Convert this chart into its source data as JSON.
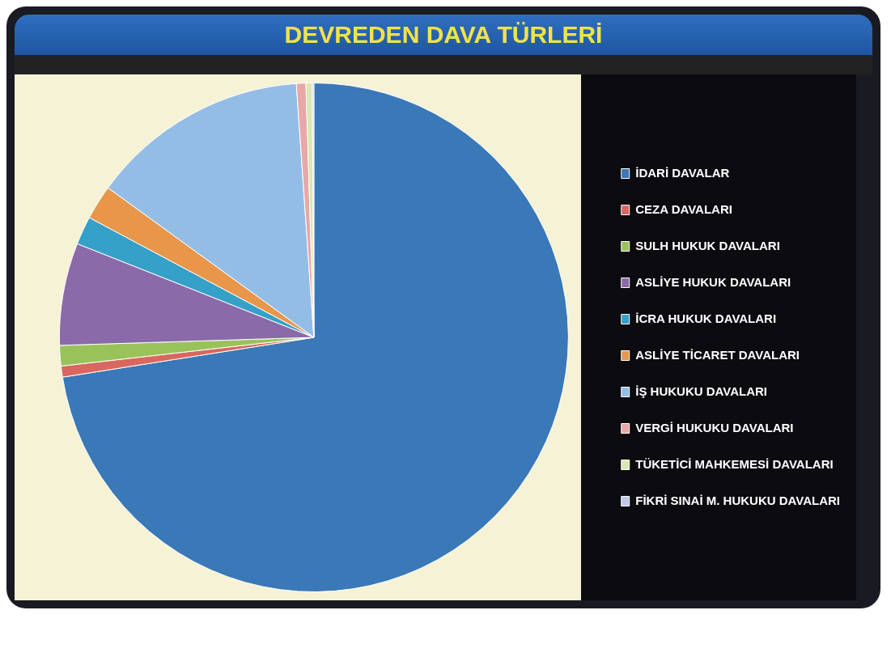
{
  "chart_data": {
    "type": "pie",
    "title": "DEVREDEN DAVA TÜRLERİ",
    "categories": [
      "İDARİ DAVALAR",
      "CEZA DAVALARI",
      "SULH HUKUK DAVALARI",
      "ASLİYE HUKUK DAVALARI",
      "İCRA HUKUK DAVALARI",
      "ASLİYE TİCARET DAVALARI",
      "İŞ HUKUKU DAVALARI",
      "VERGİ HUKUKU DAVALARI",
      "TÜKETİCİ MAHKEMESİ DAVALARI",
      "FİKRİ SINAİ M. HUKUKU DAVALARI"
    ],
    "values": [
      72.5,
      0.7,
      1.3,
      6.5,
      1.8,
      2.2,
      13.9,
      0.6,
      0.4,
      0.1
    ],
    "colors": [
      "#3a78b8",
      "#d9675f",
      "#9ac25a",
      "#8a6aa8",
      "#35a0c8",
      "#e8964a",
      "#94bde6",
      "#e8a8a8",
      "#d8e8b0",
      "#c0c8e8"
    ],
    "legend": "right"
  }
}
